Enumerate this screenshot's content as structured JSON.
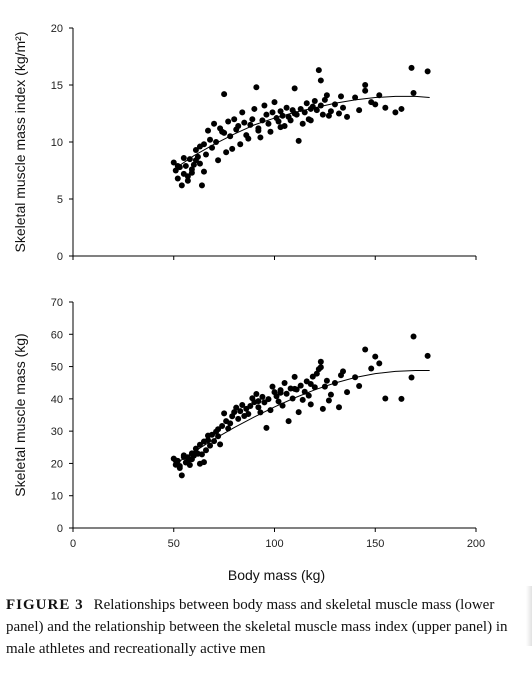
{
  "caption": {
    "label": "FIGURE 3",
    "text": "Relationships between body mass and skeletal muscle mass (lower panel) and the relationship between the skeletal muscle mass index (upper panel) in male athletes and recreationally active men"
  },
  "chart_data": [
    {
      "type": "scatter",
      "panel": "upper",
      "title": "",
      "xlabel": "",
      "ylabel": "Skeletal muscle mass index (kg/m²)",
      "xlim": [
        0,
        200
      ],
      "ylim": [
        0,
        20
      ],
      "xticks": [
        0,
        50,
        100,
        150,
        200
      ],
      "yticks": [
        0,
        5,
        10,
        15,
        20
      ],
      "show_x_tick_labels": false,
      "grid": false,
      "legend": "none",
      "marker_color": "#000000",
      "trendline": {
        "type": "polynomial",
        "x": [
          50,
          60,
          70,
          80,
          90,
          100,
          110,
          120,
          130,
          140,
          150,
          160,
          170,
          177
        ],
        "y": [
          7.6,
          8.8,
          9.8,
          10.7,
          11.5,
          12.1,
          12.6,
          13.0,
          13.4,
          13.7,
          13.9,
          14.0,
          14.0,
          13.9
        ]
      },
      "series": [
        {
          "x": [
            50,
            51,
            52,
            53,
            54,
            55,
            56,
            57,
            58,
            59,
            60,
            61,
            62,
            63,
            64,
            65,
            66,
            67,
            68,
            69,
            70,
            71,
            72,
            73,
            74,
            75,
            76,
            77,
            78,
            79,
            80,
            81,
            82,
            83,
            84,
            85,
            86,
            87,
            88,
            89,
            90,
            91,
            92,
            93,
            94,
            95,
            96,
            97,
            98,
            99,
            100,
            101,
            102,
            103,
            104,
            105,
            106,
            107,
            108,
            109,
            110,
            111,
            112,
            113,
            114,
            115,
            116,
            117,
            118,
            119,
            120,
            121,
            122,
            123,
            124,
            125,
            126,
            128,
            130,
            132,
            134,
            136,
            140,
            142,
            145,
            148,
            150,
            152,
            155,
            160,
            163,
            168,
            169,
            176,
            52,
            55,
            57,
            59,
            61,
            63,
            65,
            75,
            92,
            103,
            110,
            118,
            123,
            127,
            133,
            145
          ],
          "y": [
            8.2,
            7.5,
            6.8,
            7.8,
            6.2,
            7.2,
            7.9,
            6.6,
            8.5,
            7.3,
            8.0,
            9.3,
            8.7,
            8.1,
            6.2,
            9.8,
            8.9,
            11.0,
            10.2,
            9.5,
            11.6,
            10.0,
            8.4,
            11.2,
            10.9,
            14.2,
            9.1,
            11.8,
            10.5,
            9.4,
            12.0,
            11.1,
            11.4,
            9.8,
            12.6,
            11.7,
            10.6,
            10.3,
            11.5,
            12.0,
            12.9,
            14.8,
            11.2,
            10.4,
            11.9,
            13.2,
            12.4,
            11.6,
            10.9,
            12.6,
            13.5,
            12.1,
            11.8,
            12.7,
            12.3,
            11.4,
            13.0,
            12.2,
            11.9,
            12.8,
            14.7,
            12.4,
            10.1,
            12.9,
            11.6,
            12.6,
            13.4,
            12.0,
            11.9,
            13.1,
            13.6,
            12.8,
            16.3,
            15.4,
            12.4,
            13.7,
            14.1,
            12.7,
            13.3,
            12.5,
            13.0,
            12.2,
            13.9,
            12.8,
            15.0,
            13.5,
            13.3,
            14.1,
            13.0,
            12.6,
            12.9,
            16.5,
            14.3,
            16.2,
            7.9,
            8.6,
            7.0,
            7.6,
            8.4,
            9.6,
            7.4,
            10.8,
            11.0,
            11.3,
            12.5,
            12.9,
            13.2,
            12.3,
            14.0,
            14.5
          ]
        }
      ]
    },
    {
      "type": "scatter",
      "panel": "lower",
      "title": "",
      "xlabel": "Body mass (kg)",
      "ylabel": "Skeletal muscle mass (kg)",
      "xlim": [
        0,
        200
      ],
      "ylim": [
        0,
        70
      ],
      "xticks": [
        0,
        50,
        100,
        150,
        200
      ],
      "yticks": [
        0,
        10,
        20,
        30,
        40,
        50,
        60,
        70
      ],
      "show_x_tick_labels": true,
      "grid": false,
      "legend": "none",
      "marker_color": "#000000",
      "trendline": {
        "type": "polynomial",
        "x": [
          50,
          60,
          70,
          80,
          90,
          100,
          110,
          120,
          130,
          140,
          150,
          160,
          170,
          177
        ],
        "y": [
          19.5,
          23.6,
          27.5,
          31.1,
          34.4,
          37.5,
          40.3,
          42.8,
          44.9,
          46.6,
          47.8,
          48.5,
          48.8,
          48.8
        ]
      },
      "series": [
        {
          "x": [
            50,
            51,
            52,
            53,
            54,
            55,
            56,
            57,
            58,
            59,
            60,
            61,
            62,
            63,
            64,
            65,
            66,
            67,
            68,
            69,
            70,
            71,
            72,
            73,
            74,
            75,
            76,
            77,
            78,
            79,
            80,
            81,
            82,
            83,
            84,
            85,
            86,
            87,
            88,
            89,
            90,
            91,
            92,
            93,
            94,
            95,
            96,
            97,
            98,
            99,
            100,
            101,
            102,
            103,
            104,
            105,
            106,
            107,
            108,
            109,
            110,
            111,
            112,
            113,
            114,
            115,
            116,
            117,
            118,
            119,
            120,
            121,
            122,
            123,
            124,
            125,
            126,
            128,
            130,
            132,
            134,
            136,
            140,
            142,
            145,
            148,
            150,
            152,
            155,
            163,
            168,
            169,
            176,
            51,
            53,
            55,
            57,
            59,
            61,
            63,
            65,
            67,
            72,
            92,
            103,
            110,
            118,
            123,
            127,
            133
          ],
          "y": [
            21.5,
            19.6,
            20.8,
            19.2,
            16.3,
            22.0,
            20.3,
            21.9,
            19.5,
            23.1,
            22.4,
            24.6,
            23.0,
            19.9,
            22.8,
            26.8,
            24.1,
            27.2,
            25.5,
            28.9,
            26.9,
            29.8,
            28.4,
            25.9,
            31.6,
            35.5,
            33.1,
            30.8,
            32.4,
            34.6,
            35.9,
            37.3,
            33.8,
            36.2,
            38.1,
            34.7,
            36.9,
            35.3,
            37.8,
            40.2,
            39.0,
            41.5,
            37.4,
            35.8,
            40.6,
            38.9,
            31.0,
            39.9,
            36.5,
            43.8,
            42.1,
            40.8,
            39.2,
            42.7,
            37.9,
            44.9,
            41.6,
            33.1,
            43.2,
            40.1,
            46.8,
            42.9,
            35.9,
            44.1,
            39.7,
            42.2,
            45.4,
            41.0,
            38.3,
            46.9,
            43.6,
            47.8,
            49.2,
            51.5,
            36.9,
            43.8,
            45.6,
            41.3,
            44.9,
            37.4,
            48.5,
            42.1,
            46.7,
            44.0,
            55.3,
            49.4,
            53.1,
            51.0,
            40.1,
            40.0,
            46.6,
            59.3,
            53.3,
            20.9,
            18.6,
            22.5,
            20.6,
            21.3,
            23.3,
            25.8,
            20.4,
            28.6,
            30.6,
            39.3,
            41.9,
            43.1,
            44.6,
            49.8,
            39.5,
            47.3
          ]
        }
      ]
    }
  ]
}
